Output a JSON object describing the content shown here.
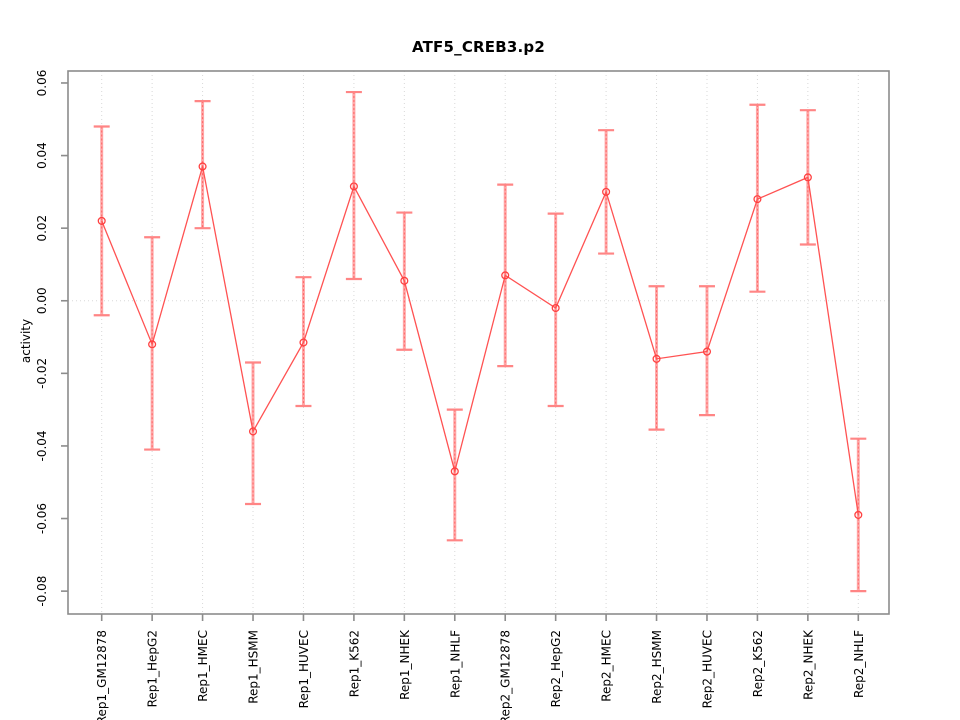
{
  "title": "ATF5_CREB3.p2",
  "chart_data": {
    "type": "line",
    "title": "ATF5_CREB3.p2",
    "xlabel": "",
    "ylabel": "activity",
    "ylim": [
      -0.0863,
      0.0633
    ],
    "grid": "vertical dotted gridline at each category; horizontal dotted gridline at y=0 only",
    "legend_position": "none",
    "marker": "open-circle",
    "error_bars": true,
    "yticks": {
      "values": [
        0.06,
        0.04,
        0.02,
        0.0,
        -0.02,
        -0.04,
        -0.06,
        -0.08
      ],
      "labels": [
        "0.06",
        "0.04",
        "0.02",
        "0.00",
        "-0.02",
        "-0.04",
        "-0.06",
        "-0.08"
      ]
    },
    "categories": [
      "Rep1_GM12878",
      "Rep1_HepG2",
      "Rep1_HMEC",
      "Rep1_HSMM",
      "Rep1_HUVEC",
      "Rep1_K562",
      "Rep1_NHEK",
      "Rep1_NHLF",
      "Rep2_GM12878",
      "Rep2_HepG2",
      "Rep2_HMEC",
      "Rep2_HSMM",
      "Rep2_HUVEC",
      "Rep2_K562",
      "Rep2_NHEK",
      "Rep2_NHLF"
    ],
    "series": [
      {
        "name": "activity",
        "values": [
          0.022,
          -0.012,
          0.037,
          -0.036,
          -0.0115,
          0.0315,
          0.0055,
          -0.047,
          0.007,
          -0.002,
          0.03,
          -0.016,
          -0.014,
          0.028,
          0.034,
          -0.059
        ],
        "lower": [
          -0.004,
          -0.041,
          0.02,
          -0.056,
          -0.029,
          0.006,
          -0.0135,
          -0.066,
          -0.018,
          -0.029,
          0.013,
          -0.0355,
          -0.0315,
          0.0025,
          0.0155,
          -0.08
        ],
        "upper": [
          0.048,
          0.0175,
          0.055,
          -0.017,
          0.0065,
          0.0575,
          0.0243,
          -0.03,
          0.032,
          0.024,
          0.047,
          0.004,
          0.004,
          0.054,
          0.0525,
          -0.038
        ]
      }
    ],
    "colors": {
      "line": "#ff5252",
      "point_stroke": "#ff4040",
      "error_bar_stem": "#ffa8a8",
      "error_bar_core": "#ff6666",
      "error_bar_cap": "#ff8585",
      "box": "#8c8c8c",
      "gridline": "#d8d8d8",
      "text": "#000000",
      "background": "#ffffff"
    }
  }
}
